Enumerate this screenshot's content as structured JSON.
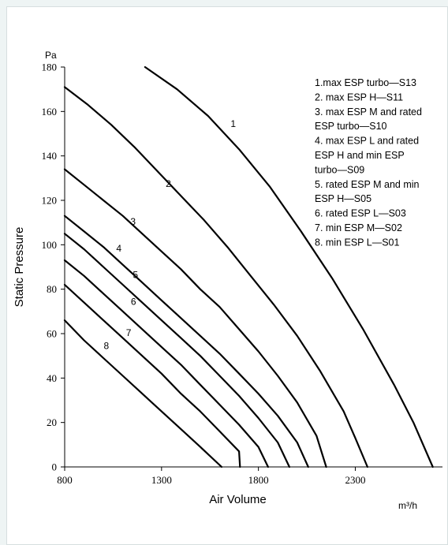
{
  "chart_data": {
    "type": "line",
    "title": "",
    "xlabel": "Air Volume",
    "ylabel": "Static Pressure",
    "x_unit": "m³/h",
    "y_unit": "Pa",
    "xlim": [
      800,
      2750
    ],
    "ylim": [
      0,
      180
    ],
    "x_ticks": [
      800,
      1300,
      1800,
      2300
    ],
    "y_ticks": [
      0,
      20,
      40,
      60,
      80,
      100,
      120,
      140,
      160,
      180
    ],
    "grid": false,
    "legend_position": "top-right",
    "legend_lines": [
      "1.max ESP turbo—S13",
      "2. max ESP H—S11",
      "3. max ESP M and rated",
      "ESP turbo—S10",
      "4. max ESP L and rated",
      "ESP H and min ESP",
      "turbo—S09",
      "5. rated ESP M and min",
      "ESP H—S05",
      "6. rated ESP L—S03",
      "7. min ESP M—S02",
      "8. min ESP L—S01"
    ],
    "series": [
      {
        "name": "1",
        "label_at": [
          1670,
          153
        ],
        "x": [
          1215,
          1380,
          1540,
          1700,
          1860,
          2020,
          2180,
          2340,
          2500,
          2600,
          2700
        ],
        "y": [
          180,
          170,
          158,
          143,
          126,
          106,
          85,
          62,
          37,
          20,
          0
        ]
      },
      {
        "name": "2",
        "label_at": [
          1335,
          126
        ],
        "x": [
          800,
          920,
          1040,
          1160,
          1280,
          1400,
          1520,
          1640,
          1760,
          1880,
          2000,
          2120,
          2240,
          2300,
          2363
        ],
        "y": [
          171,
          163,
          154,
          144,
          133,
          122,
          111,
          99,
          86,
          73,
          59,
          43,
          25,
          13,
          0
        ]
      },
      {
        "name": "3",
        "label_at": [
          1153,
          109
        ],
        "x": [
          800,
          900,
          1000,
          1100,
          1200,
          1300,
          1400,
          1500,
          1600,
          1700,
          1800,
          1900,
          2000,
          2100,
          2150
        ],
        "y": [
          134,
          127,
          120,
          113,
          105,
          97,
          89,
          80,
          72,
          62,
          52,
          41,
          29,
          14,
          0
        ]
      },
      {
        "name": "4",
        "label_at": [
          1080,
          97
        ],
        "x": [
          800,
          900,
          1000,
          1100,
          1200,
          1300,
          1400,
          1500,
          1600,
          1700,
          1800,
          1900,
          2000,
          2057
        ],
        "y": [
          113,
          106,
          99,
          91,
          83,
          75,
          67,
          59,
          51,
          42,
          33,
          23,
          11,
          0
        ]
      },
      {
        "name": "5",
        "label_at": [
          1165,
          85
        ],
        "x": [
          800,
          900,
          1000,
          1100,
          1200,
          1300,
          1400,
          1500,
          1600,
          1700,
          1800,
          1900,
          1960
        ],
        "y": [
          105,
          98,
          90,
          82,
          74,
          66,
          58,
          50,
          41,
          32,
          22,
          11,
          0
        ]
      },
      {
        "name": "6",
        "label_at": [
          1155,
          73
        ],
        "x": [
          800,
          900,
          1000,
          1100,
          1200,
          1300,
          1400,
          1500,
          1600,
          1700,
          1800,
          1850
        ],
        "y": [
          93,
          86,
          78,
          70,
          62,
          54,
          46,
          37,
          28,
          19,
          9,
          0
        ]
      },
      {
        "name": "7",
        "label_at": [
          1130,
          59
        ],
        "x": [
          800,
          900,
          1000,
          1100,
          1200,
          1300,
          1400,
          1500,
          1600,
          1700,
          1705
        ],
        "y": [
          82,
          74,
          66,
          58,
          50,
          42,
          33,
          25,
          16,
          7,
          0
        ]
      },
      {
        "name": "8",
        "label_at": [
          1015,
          53
        ],
        "x": [
          800,
          900,
          1000,
          1100,
          1200,
          1300,
          1400,
          1500,
          1610
        ],
        "y": [
          66,
          57,
          49,
          41,
          33,
          25,
          17,
          9,
          0
        ]
      }
    ]
  }
}
